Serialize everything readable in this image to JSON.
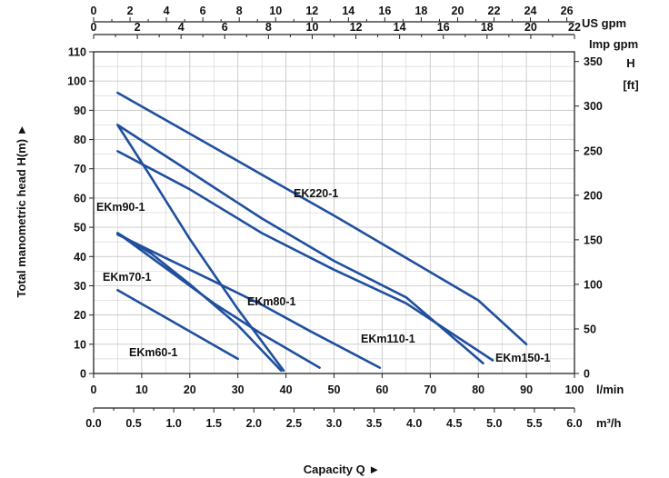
{
  "colors": {
    "curve": "#1f4f9e",
    "grid": "#c8c8c8",
    "axis": "#222222"
  },
  "chart_data": {
    "type": "line",
    "title": "",
    "xlabel": "Capacity Q ►",
    "ylabel": "Total manometric head H(m) ►",
    "grid": true,
    "xlim": [
      0,
      100
    ],
    "ylim": [
      0,
      110
    ],
    "axes": {
      "x_bottom": {
        "unit": "l/min",
        "ticks": [
          0,
          10,
          20,
          30,
          40,
          50,
          60,
          70,
          80,
          90,
          100
        ]
      },
      "x_m3h": {
        "unit": "m³/h",
        "range": [
          0,
          6
        ],
        "ticks": [
          "0.0",
          "0.5",
          "1.0",
          "1.5",
          "2.0",
          "2.5",
          "3.0",
          "3.5",
          "4.0",
          "4.5",
          "5.0",
          "5.5",
          "6.0"
        ]
      },
      "x_us_gpm": {
        "unit": "US gpm",
        "range": [
          0,
          26.42
        ],
        "ticks": [
          0,
          2,
          4,
          6,
          8,
          10,
          12,
          14,
          16,
          18,
          20,
          22,
          24,
          26
        ]
      },
      "x_imp_gpm": {
        "unit": "Imp gpm",
        "range": [
          0,
          22
        ],
        "ticks": [
          0,
          2,
          4,
          6,
          8,
          10,
          12,
          14,
          16,
          18,
          20,
          22
        ]
      },
      "y_left": {
        "unit": "",
        "ticks": [
          0,
          10,
          20,
          30,
          40,
          50,
          60,
          70,
          80,
          90,
          100,
          110
        ]
      },
      "y_right": {
        "unit_line1": "H",
        "unit_line2": "[ft]",
        "range": [
          0,
          360.9
        ],
        "ticks": [
          0,
          50,
          100,
          150,
          200,
          250,
          300,
          350
        ]
      }
    },
    "series": [
      {
        "name": "EKm60-1",
        "x": [
          5,
          30
        ],
        "y": [
          28.5,
          5
        ]
      },
      {
        "name": "EKm70-1",
        "x": [
          5,
          12,
          20,
          30,
          39
        ],
        "y": [
          48,
          41,
          30.5,
          16.5,
          1
        ]
      },
      {
        "name": "EKm90-1",
        "x": [
          5,
          12,
          20,
          30,
          39.5
        ],
        "y": [
          85,
          67,
          46,
          22,
          1
        ]
      },
      {
        "name": "EKm80-1",
        "x": [
          5,
          15,
          25,
          35,
          47
        ],
        "y": [
          48,
          36,
          24,
          13.5,
          2
        ]
      },
      {
        "name": "EKm110-1",
        "x": [
          5,
          15,
          25,
          35,
          45,
          59.5
        ],
        "y": [
          47.5,
          39.5,
          31.5,
          23.5,
          14.5,
          2
        ]
      },
      {
        "name": "EKm150-1",
        "x": [
          5,
          20,
          35,
          50,
          65,
          83
        ],
        "y": [
          76,
          63,
          48,
          35.5,
          24,
          4.5
        ]
      },
      {
        "name": "EK220-1",
        "x": [
          5,
          20,
          35,
          50,
          65,
          80,
          90
        ],
        "y": [
          96,
          82,
          68,
          54,
          39.5,
          25,
          10
        ]
      },
      {
        "name": "",
        "x": [
          5,
          20,
          35,
          50,
          65,
          81
        ],
        "y": [
          85,
          69,
          53,
          38.5,
          26,
          3.5
        ]
      }
    ]
  }
}
